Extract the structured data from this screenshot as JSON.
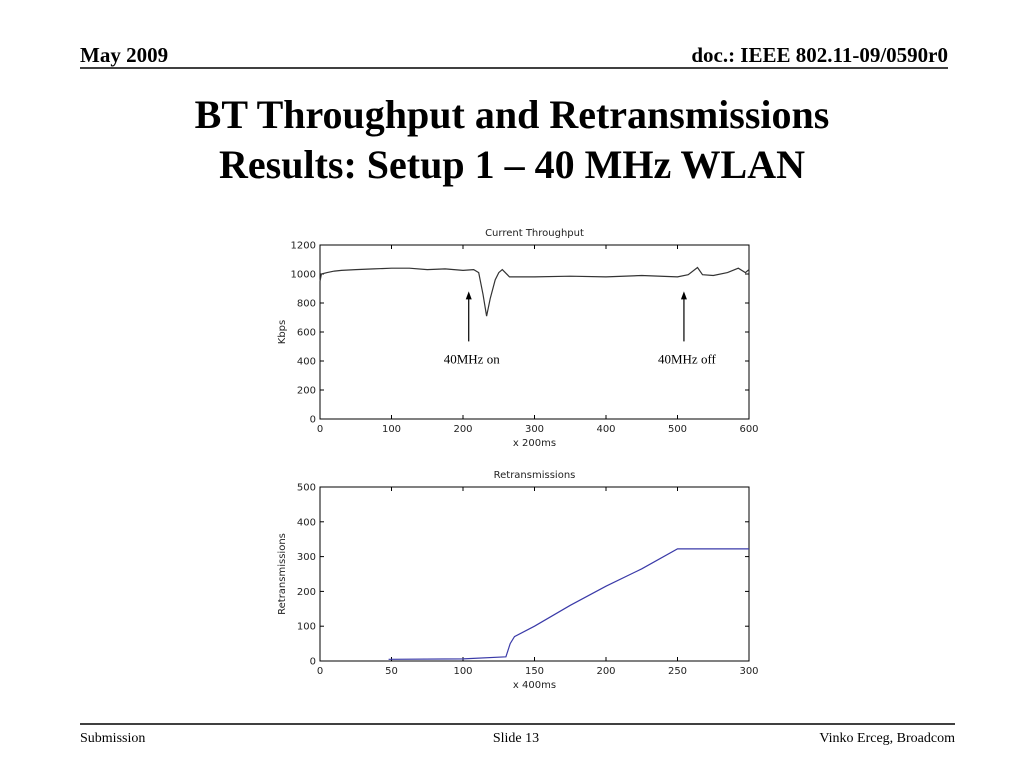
{
  "header": {
    "date": "May 2009",
    "doc": "doc.: IEEE 802.11-09/0590r0"
  },
  "title": [
    "BT Throughput and Retransmissions",
    "Results: Setup 1 – 40 MHz WLAN"
  ],
  "footer": {
    "left": "Submission",
    "center": "Slide 13",
    "right": "Vinko Erceg, Broadcom"
  },
  "chart_data": [
    {
      "type": "line",
      "title": "Current Throughput",
      "xlabel": "x 200ms",
      "ylabel": "Kbps",
      "x": [
        0,
        2,
        10,
        20,
        30,
        50,
        75,
        100,
        125,
        150,
        175,
        200,
        215,
        222,
        228,
        233,
        238,
        245,
        250,
        255,
        265,
        300,
        350,
        400,
        450,
        500,
        515,
        528,
        535,
        550,
        570,
        585,
        595,
        600
      ],
      "series": [
        {
          "color": "#333333",
          "values": [
            950,
            1000,
            1010,
            1020,
            1025,
            1030,
            1035,
            1040,
            1040,
            1030,
            1035,
            1025,
            1030,
            1010,
            860,
            710,
            830,
            960,
            1010,
            1030,
            980,
            980,
            985,
            980,
            990,
            980,
            995,
            1045,
            995,
            990,
            1010,
            1040,
            1010,
            1030
          ]
        }
      ],
      "xlim": [
        0,
        600
      ],
      "xticks": [
        0,
        100,
        200,
        300,
        400,
        500,
        600
      ],
      "ylim": [
        0,
        1200
      ],
      "yticks": [
        0,
        200,
        400,
        600,
        800,
        1000,
        1200
      ],
      "grid": false,
      "annotations": [
        {
          "text": "40MHz on",
          "x": 208,
          "y": 880
        },
        {
          "text": "40MHz off",
          "x": 509,
          "y": 880
        }
      ]
    },
    {
      "type": "line",
      "title": "Retransmissions",
      "xlabel": "x 400ms",
      "ylabel": "Retransmissions",
      "x": [
        48,
        100,
        130,
        133,
        136,
        150,
        175,
        200,
        225,
        250,
        300
      ],
      "series": [
        {
          "color": "#3a3aa8",
          "values": [
            5,
            6,
            12,
            50,
            70,
            100,
            160,
            215,
            265,
            322,
            322
          ]
        }
      ],
      "xlim": [
        0,
        300
      ],
      "xticks": [
        0,
        50,
        100,
        150,
        200,
        250,
        300
      ],
      "ylim": [
        0,
        500
      ],
      "yticks": [
        0,
        100,
        200,
        300,
        400,
        500
      ],
      "grid": false
    }
  ]
}
